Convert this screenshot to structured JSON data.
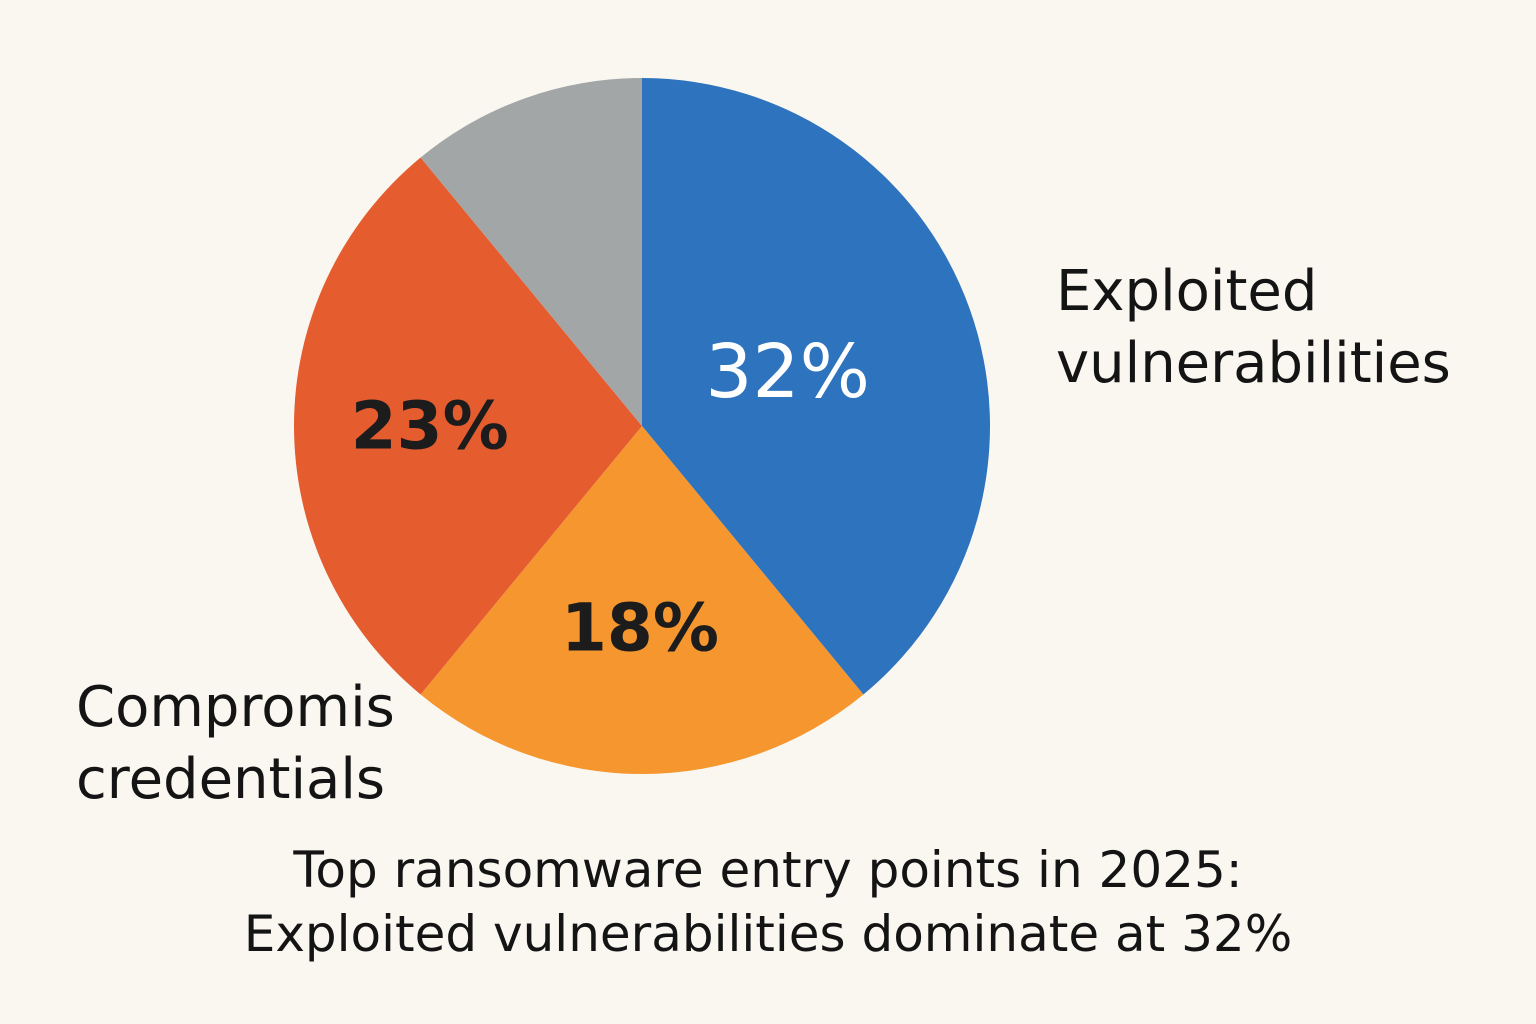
{
  "chart_data": {
    "type": "pie",
    "title": "Top ransomware entry points in 2025:",
    "subtitle": "Exploited vulnerabilities dominate at 32%",
    "slices": [
      {
        "label": "Exploited vulnerabilities",
        "value": 32,
        "value_label": "32%",
        "color": "#2e73bd",
        "text_color": "#ffffff"
      },
      {
        "label": "",
        "value": 18,
        "value_label": "18%",
        "color": "#f5962f",
        "text_color": "#1c1c1c"
      },
      {
        "label": "",
        "value": 23,
        "value_label": "23%",
        "color": "#e55c2f",
        "text_color": "#1c1c1c"
      },
      {
        "label": "",
        "value": 9,
        "value_label": "",
        "color": "#a3a6a6",
        "text_color": "#1c1c1c"
      }
    ],
    "external_labels": {
      "exploited": [
        "Exploited",
        "vulnerabilities"
      ],
      "compromised": [
        "Compromis",
        "credentials"
      ]
    },
    "background": "#faf7f1"
  }
}
